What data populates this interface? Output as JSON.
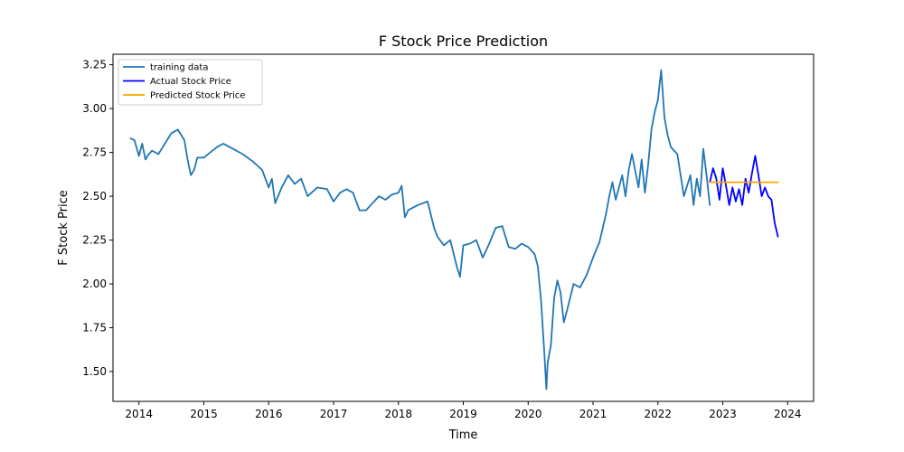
{
  "chart_data": {
    "type": "line",
    "title": "F Stock Price Prediction",
    "xlabel": "Time",
    "ylabel": "F Stock Price",
    "xlim": [
      2013.6,
      2024.4
    ],
    "ylim": [
      1.33,
      3.31
    ],
    "x_ticks": [
      2014,
      2015,
      2016,
      2017,
      2018,
      2019,
      2020,
      2021,
      2022,
      2023,
      2024
    ],
    "x_tick_labels": [
      "2014",
      "2015",
      "2016",
      "2017",
      "2018",
      "2019",
      "2020",
      "2021",
      "2022",
      "2023",
      "2024"
    ],
    "y_ticks": [
      1.5,
      1.75,
      2.0,
      2.25,
      2.5,
      2.75,
      3.0,
      3.25
    ],
    "y_tick_labels": [
      "1.50",
      "1.75",
      "2.00",
      "2.25",
      "2.50",
      "2.75",
      "3.00",
      "3.25"
    ],
    "grid": false,
    "legend": "top-left",
    "series": [
      {
        "name": "training data",
        "color": "#1f77b4",
        "x": [
          2013.87,
          2013.93,
          2014.0,
          2014.05,
          2014.1,
          2014.15,
          2014.2,
          2014.3,
          2014.4,
          2014.5,
          2014.6,
          2014.7,
          2014.75,
          2014.8,
          2014.85,
          2014.9,
          2015.0,
          2015.1,
          2015.2,
          2015.3,
          2015.45,
          2015.6,
          2015.75,
          2015.9,
          2016.0,
          2016.05,
          2016.1,
          2016.2,
          2016.3,
          2016.4,
          2016.5,
          2016.6,
          2016.75,
          2016.9,
          2017.0,
          2017.1,
          2017.2,
          2017.3,
          2017.4,
          2017.5,
          2017.6,
          2017.7,
          2017.8,
          2017.9,
          2018.0,
          2018.05,
          2018.1,
          2018.15,
          2018.3,
          2018.45,
          2018.55,
          2018.6,
          2018.7,
          2018.8,
          2018.9,
          2018.95,
          2019.0,
          2019.1,
          2019.2,
          2019.3,
          2019.4,
          2019.5,
          2019.6,
          2019.7,
          2019.8,
          2019.9,
          2020.0,
          2020.1,
          2020.15,
          2020.2,
          2020.25,
          2020.28,
          2020.3,
          2020.35,
          2020.4,
          2020.45,
          2020.5,
          2020.55,
          2020.6,
          2020.7,
          2020.8,
          2020.9,
          2021.0,
          2021.1,
          2021.2,
          2021.25,
          2021.3,
          2021.35,
          2021.4,
          2021.45,
          2021.5,
          2021.55,
          2021.6,
          2021.7,
          2021.75,
          2021.8,
          2021.85,
          2021.9,
          2021.95,
          2022.0,
          2022.05,
          2022.1,
          2022.15,
          2022.2,
          2022.3,
          2022.4,
          2022.5,
          2022.55,
          2022.6,
          2022.65,
          2022.7,
          2022.75,
          2022.8
        ],
        "values": [
          2.83,
          2.82,
          2.73,
          2.8,
          2.71,
          2.74,
          2.76,
          2.74,
          2.8,
          2.86,
          2.88,
          2.82,
          2.71,
          2.62,
          2.65,
          2.72,
          2.72,
          2.75,
          2.78,
          2.8,
          2.77,
          2.74,
          2.7,
          2.65,
          2.55,
          2.6,
          2.46,
          2.55,
          2.62,
          2.57,
          2.6,
          2.5,
          2.55,
          2.54,
          2.47,
          2.52,
          2.54,
          2.52,
          2.42,
          2.42,
          2.46,
          2.5,
          2.48,
          2.51,
          2.52,
          2.56,
          2.38,
          2.42,
          2.45,
          2.47,
          2.32,
          2.27,
          2.22,
          2.25,
          2.1,
          2.04,
          2.22,
          2.23,
          2.25,
          2.15,
          2.23,
          2.32,
          2.33,
          2.21,
          2.2,
          2.23,
          2.21,
          2.17,
          2.1,
          1.9,
          1.6,
          1.4,
          1.55,
          1.65,
          1.92,
          2.02,
          1.95,
          1.78,
          1.85,
          2.0,
          1.98,
          2.05,
          2.15,
          2.24,
          2.4,
          2.5,
          2.58,
          2.48,
          2.55,
          2.62,
          2.5,
          2.65,
          2.74,
          2.55,
          2.71,
          2.52,
          2.68,
          2.88,
          2.98,
          3.05,
          3.22,
          2.95,
          2.85,
          2.78,
          2.74,
          2.5,
          2.62,
          2.45,
          2.6,
          2.5,
          2.77,
          2.62,
          2.45
        ]
      },
      {
        "name": "Actual Stock Price",
        "color": "#0000ff",
        "x": [
          2022.8,
          2022.85,
          2022.9,
          2022.95,
          2023.0,
          2023.05,
          2023.1,
          2023.15,
          2023.2,
          2023.25,
          2023.3,
          2023.35,
          2023.4,
          2023.45,
          2023.5,
          2023.55,
          2023.6,
          2023.65,
          2023.7,
          2023.75,
          2023.8,
          2023.85
        ],
        "values": [
          2.58,
          2.66,
          2.6,
          2.48,
          2.66,
          2.56,
          2.45,
          2.55,
          2.47,
          2.54,
          2.45,
          2.6,
          2.52,
          2.63,
          2.73,
          2.62,
          2.5,
          2.55,
          2.5,
          2.48,
          2.35,
          2.27
        ]
      },
      {
        "name": "Predicted Stock Price",
        "color": "#ffa500",
        "x": [
          2022.8,
          2023.85
        ],
        "values": [
          2.58,
          2.58
        ]
      }
    ]
  }
}
